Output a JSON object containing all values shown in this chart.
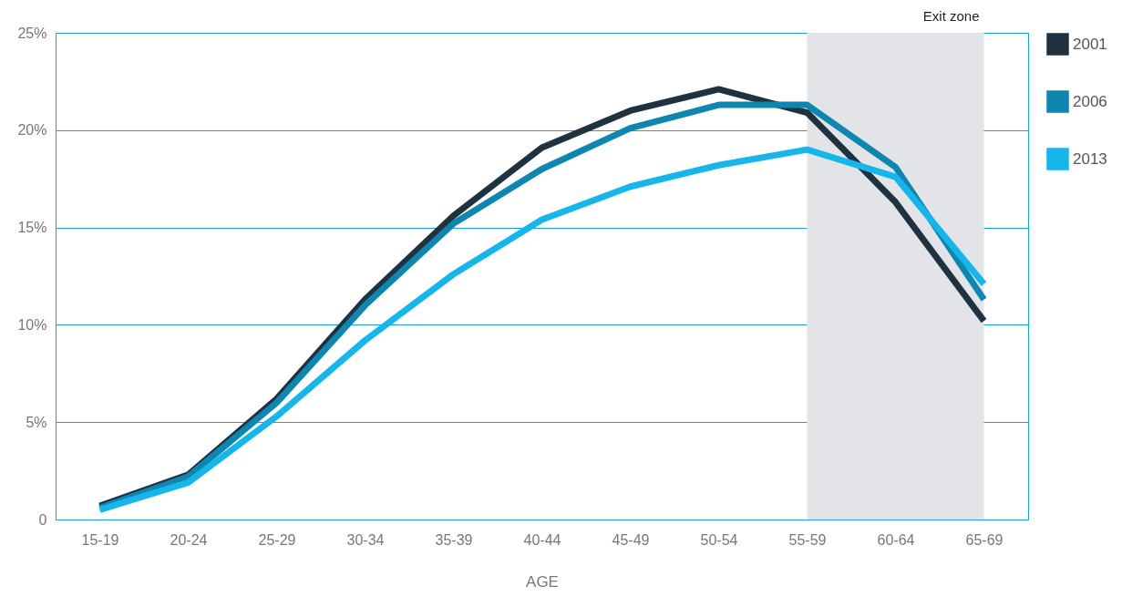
{
  "chart_data": {
    "type": "line",
    "xlabel": "AGE",
    "categories": [
      "15-19",
      "20-24",
      "25-29",
      "30-34",
      "35-39",
      "40-44",
      "45-49",
      "50-54",
      "55-59",
      "60-64",
      "65-69"
    ],
    "series": [
      {
        "name": "2001",
        "color": "#1f3240",
        "values": [
          0.7,
          2.3,
          6.2,
          11.3,
          15.6,
          19.1,
          21.0,
          22.1,
          20.9,
          16.3,
          10.2
        ]
      },
      {
        "name": "2006",
        "color": "#0e86b0",
        "values": [
          0.6,
          2.2,
          6.0,
          11.0,
          15.2,
          18.0,
          20.1,
          21.3,
          21.3,
          18.1,
          11.3
        ]
      },
      {
        "name": "2013",
        "color": "#16b5ea",
        "values": [
          0.5,
          1.9,
          5.3,
          9.2,
          12.6,
          15.4,
          17.1,
          18.2,
          19.0,
          17.6,
          12.1
        ]
      }
    ],
    "ylim": [
      0,
      25
    ],
    "yticks": [
      0,
      {
        "value": 5,
        "label": "5%"
      },
      {
        "value": 10,
        "label": "10%"
      },
      {
        "value": 15,
        "label": "15%"
      },
      {
        "value": 20,
        "label": "20%"
      },
      {
        "value": 25,
        "label": "25%"
      }
    ],
    "bands": [
      {
        "axis": "x",
        "from": "55-59",
        "to": "65-69",
        "label": "Exit zone",
        "color": "#e3e4e7"
      }
    ],
    "grid": "y",
    "legend": "right",
    "line_style": "solid",
    "marker": "none"
  }
}
